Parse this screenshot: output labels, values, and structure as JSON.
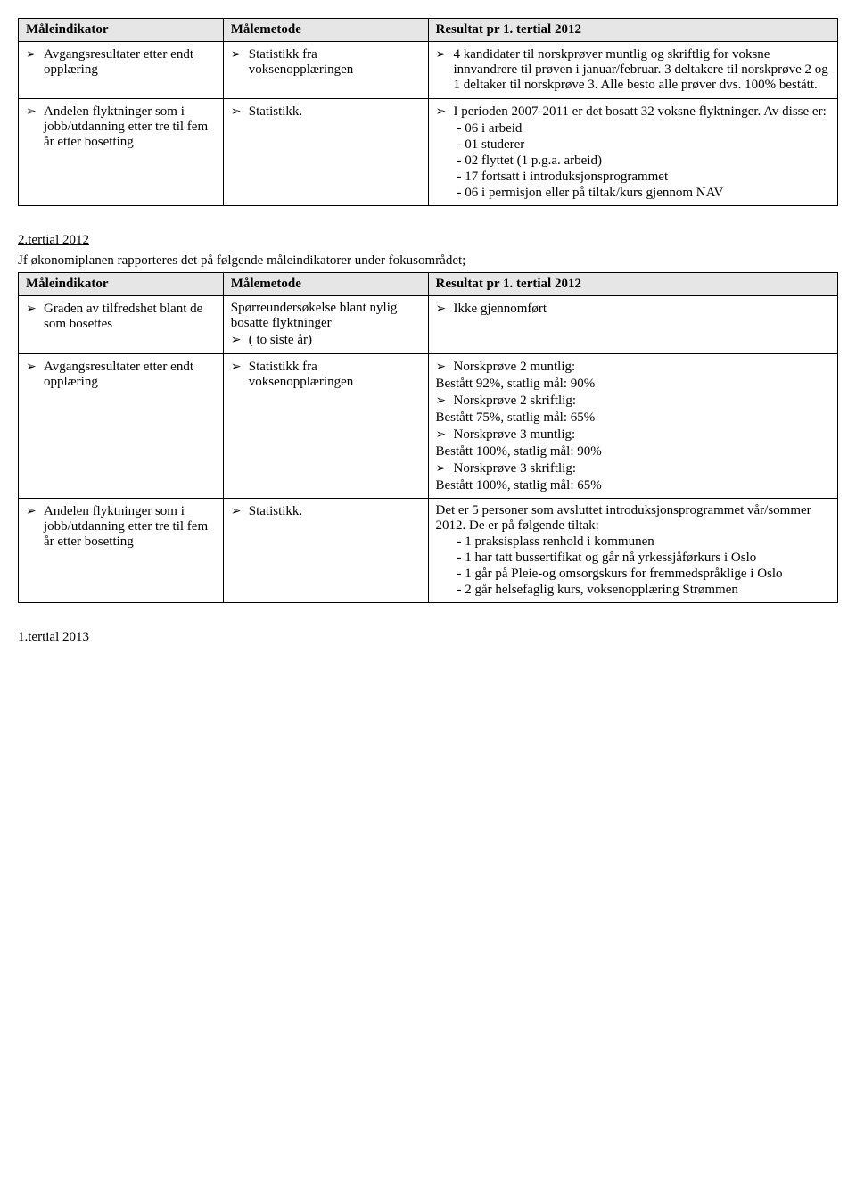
{
  "colors": {
    "header_bg": "#e6e6e6",
    "border": "#000000",
    "text": "#000000",
    "page_bg": "#ffffff"
  },
  "typography": {
    "font_family": "Times New Roman",
    "body_fontsize": 15
  },
  "table1": {
    "headers": [
      "Måleindikator",
      "Målemetode",
      "Resultat pr 1. tertial 2012"
    ],
    "rows": [
      {
        "c1_items": [
          "Avgangsresultater etter endt opplæring"
        ],
        "c2_items": [
          "Statistikk fra voksenopplæringen"
        ],
        "c3_items": [
          "4 kandidater til norskprøver muntlig og skriftlig for voksne innvandrere til prøven i januar/februar. 3 deltakere til norskprøve 2 og 1 deltaker til norskprøve 3. Alle besto alle prøver dvs. 100% bestått."
        ]
      },
      {
        "c1_items": [
          "Andelen flyktninger som i jobb/utdanning etter tre til fem år etter bosetting"
        ],
        "c2_items": [
          "Statistikk."
        ],
        "c3_items": [
          "I perioden 2007-2011 er det bosatt 32 voksne flyktninger. Av disse er:"
        ],
        "c3_sub": [
          "-   06 i arbeid",
          "-   01 studerer",
          "-   02 flyttet (1 p.g.a. arbeid)",
          "-   17 fortsatt i introduksjonsprogrammet",
          "-   06 i permisjon eller på tiltak/kurs gjennom NAV"
        ]
      }
    ]
  },
  "section2": {
    "heading": "2.tertial 2012",
    "intro": "Jf økonomiplanen rapporteres det på følgende måleindikatorer under fokusområdet;"
  },
  "table2": {
    "headers": [
      "Måleindikator",
      "Målemetode",
      "Resultat pr 1. tertial 2012"
    ],
    "rows": [
      {
        "c1_items": [
          "Graden av tilfredshet blant de som bosettes"
        ],
        "c2_plain": " Spørreundersøkelse blant nylig bosatte flyktninger",
        "c2_items": [
          "( to siste år)"
        ],
        "c3_items": [
          "Ikke gjennomført"
        ]
      },
      {
        "c1_items": [
          "Avgangsresultater etter endt opplæring"
        ],
        "c2_items": [
          "Statistikk fra voksenopplæringen"
        ],
        "c3_items": [
          "Norskprøve 2 muntlig:",
          "Norskprøve 2 skriftlig:",
          "Norskprøve 3 muntlig:",
          "Norskprøve 3 skriftlig:"
        ],
        "c3_after": [
          "Bestått 92%, statlig mål: 90%",
          "Bestått 75%, statlig mål: 65%",
          "Bestått 100%, statlig mål: 90%",
          "Bestått 100%, statlig mål: 65%"
        ]
      },
      {
        "c1_items": [
          "Andelen flyktninger som i jobb/utdanning etter tre til fem år etter bosetting"
        ],
        "c2_items": [
          "Statistikk."
        ],
        "c3_plain": "Det er 5 personer som avsluttet introduksjonsprogrammet vår/sommer 2012. De er på følgende tiltak:",
        "c3_sub": [
          "-   1 praksisplass renhold i kommunen",
          "-   1 har tatt bussertifikat og går nå yrkessjåførkurs i Oslo",
          "-   1 går på Pleie-og omsorgskurs for fremmedspråklige i Oslo",
          "-   2 går helsefaglig kurs, voksenopplæring Strømmen"
        ]
      }
    ]
  },
  "section3": {
    "heading": "1.tertial 2013"
  }
}
